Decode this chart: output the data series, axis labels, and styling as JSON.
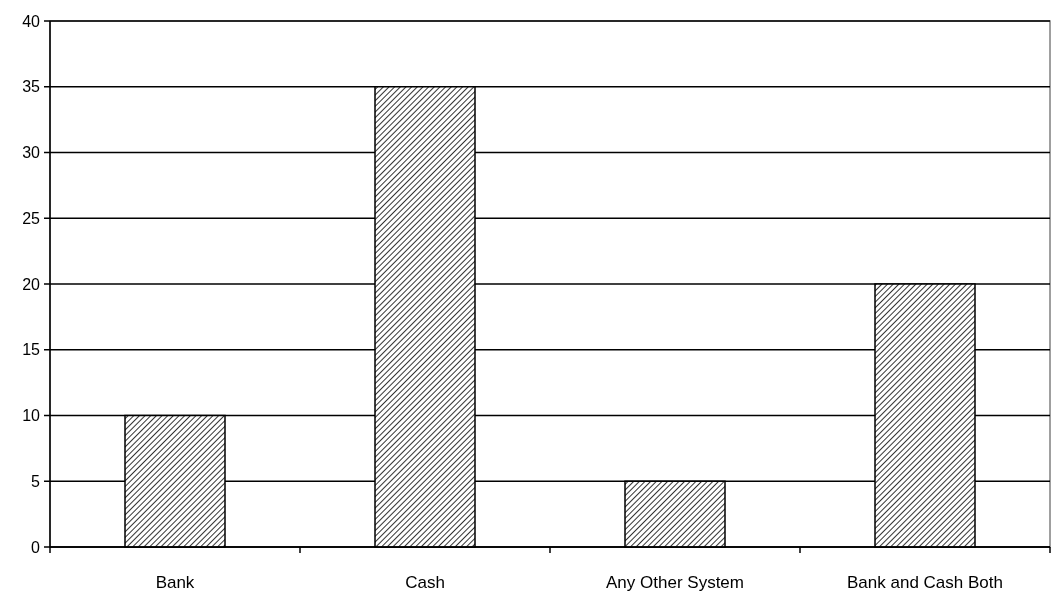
{
  "chart_data": {
    "type": "bar",
    "categories": [
      "Bank",
      "Cash",
      "Any Other System",
      "Bank and Cash Both"
    ],
    "values": [
      10,
      35,
      5,
      20
    ],
    "color": "#000000",
    "ylim": [
      0,
      40
    ],
    "yticks": [
      0,
      5,
      10,
      15,
      20,
      25,
      30,
      35,
      40
    ],
    "grid": "y"
  }
}
